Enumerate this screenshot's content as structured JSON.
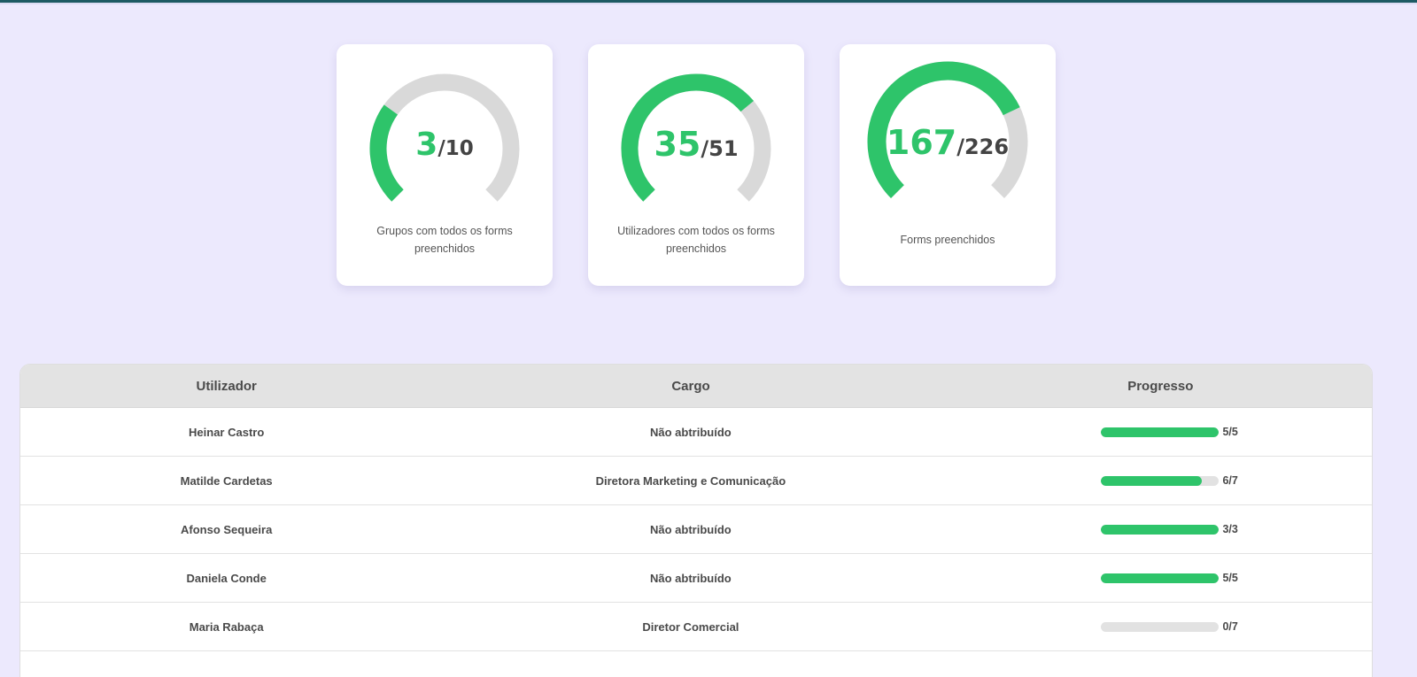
{
  "theme": {
    "accent": "#2ec46a",
    "track": "#d9d9d9",
    "background": "#ece9fd",
    "top_bar": "#1d5a63"
  },
  "stats": [
    {
      "value": "3",
      "total": "/10",
      "numerator": 3,
      "denominator": 10,
      "label": "Grupos com todos os forms preenchidos"
    },
    {
      "value": "35",
      "total": "/51",
      "numerator": 35,
      "denominator": 51,
      "label": "Utilizadores com todos os forms preenchidos"
    },
    {
      "value": "167",
      "total": "/226",
      "numerator": 167,
      "denominator": 226,
      "label": "Forms preenchidos"
    }
  ],
  "table": {
    "headers": {
      "user": "Utilizador",
      "cargo": "Cargo",
      "progress": "Progresso"
    },
    "rows": [
      {
        "user": "Heinar Castro",
        "cargo": "Não abtribuído",
        "done": 5,
        "total": 5,
        "progress_text": "5/5"
      },
      {
        "user": "Matilde Cardetas",
        "cargo": "Diretora Marketing e Comunicação",
        "done": 6,
        "total": 7,
        "progress_text": "6/7"
      },
      {
        "user": "Afonso Sequeira",
        "cargo": "Não abtribuído",
        "done": 3,
        "total": 3,
        "progress_text": "3/3"
      },
      {
        "user": "Daniela Conde",
        "cargo": "Não abtribuído",
        "done": 5,
        "total": 5,
        "progress_text": "5/5"
      },
      {
        "user": "Maria Rabaça",
        "cargo": "Diretor Comercial",
        "done": 0,
        "total": 7,
        "progress_text": "0/7"
      }
    ]
  }
}
